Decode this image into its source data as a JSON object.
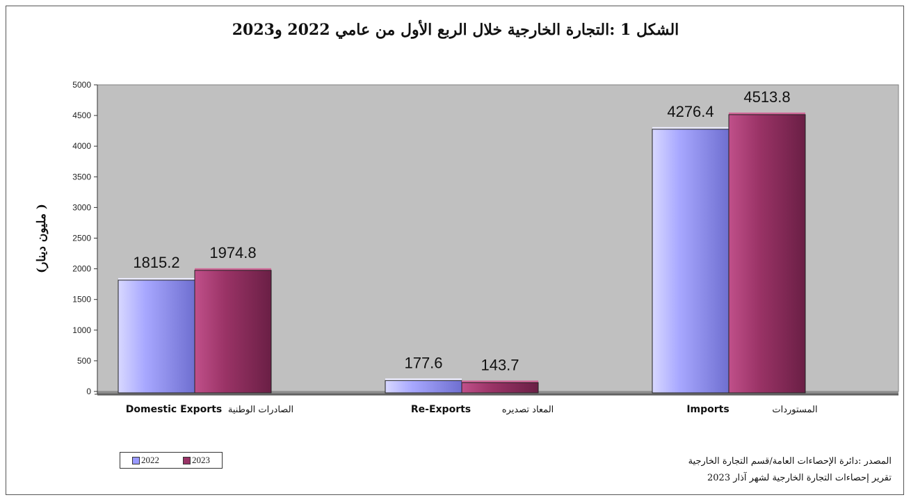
{
  "chart_data": {
    "type": "bar",
    "title": "الشكل 1 :التجارة الخارجية خلال الربع الأول من عامي 2022 و2023",
    "ylabel": "( مليون دينار)",
    "ylim": [
      0,
      5000
    ],
    "yticks": [
      0,
      500,
      1000,
      1500,
      2000,
      2500,
      3000,
      3500,
      4000,
      4500,
      5000
    ],
    "categories": [
      {
        "en": "Domestic Exports",
        "ar": "الصادرات الوطنية"
      },
      {
        "en": "Re-Exports",
        "ar": "المعاد تصديره"
      },
      {
        "en": "Imports",
        "ar": "المستوردات"
      }
    ],
    "series": [
      {
        "name": "2022",
        "values": [
          1815.2,
          177.6,
          4276.4
        ],
        "color": "#9999ff"
      },
      {
        "name": "2023",
        "values": [
          1974.8,
          143.7,
          4513.8
        ],
        "color": "#993366"
      }
    ],
    "legend": "bottom-left",
    "grid": false,
    "plot_background": "#c0c0c0"
  },
  "source": {
    "line1": "المصدر :دائرة الإحصاءات العامة/قسم التجارة الخارجية",
    "line2": "تقرير إحصاءات التجارة الخارجية لشهر آذار 2023"
  }
}
